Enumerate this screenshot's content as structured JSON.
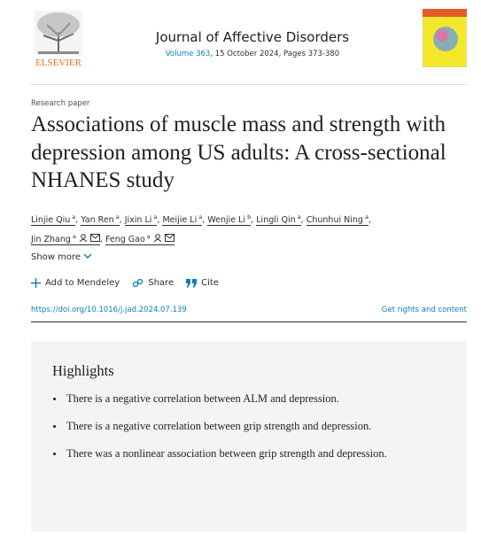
{
  "header": {
    "publisher": "ELSEVIER",
    "journal": "Journal of Affective Disorders",
    "volume": "Volume 363",
    "issue_info": ", 15 October 2024, Pages 373-380"
  },
  "article": {
    "type": "Research paper",
    "title": "Associations of muscle mass and strength with depression among US adults: A cross-sectional NHANES study",
    "author_separator": ",",
    "authors": [
      {
        "name": "Linjie Qiu",
        "affiliation": "a",
        "corresponding": false
      },
      {
        "name": "Yan Ren",
        "affiliation": "a",
        "corresponding": false
      },
      {
        "name": "Jixin Li",
        "affiliation": "a",
        "corresponding": false
      },
      {
        "name": "Meijie Li",
        "affiliation": "a",
        "corresponding": false
      },
      {
        "name": "Wenjie Li",
        "affiliation": "b",
        "corresponding": false
      },
      {
        "name": "Lingli Qin",
        "affiliation": "a",
        "corresponding": false
      },
      {
        "name": "Chunhui Ning",
        "affiliation": "a",
        "corresponding": false
      },
      {
        "name": "Jin Zhang",
        "affiliation": "a",
        "corresponding": true
      },
      {
        "name": "Feng Gao",
        "affiliation": "a",
        "corresponding": true
      }
    ],
    "show_more": "Show more",
    "actions": [
      "Add to Mendeley",
      "Share",
      "Cite"
    ],
    "doi": "https://doi.org/10.1016/j.jad.2024.07.139",
    "rights": "Get rights and content"
  },
  "highlights": {
    "title": "Highlights",
    "items": [
      "There is a negative correlation between ALM and depression.",
      "There is a negative correlation between grip strength and depression.",
      "There was a nonlinear association between grip strength and depression."
    ]
  }
}
